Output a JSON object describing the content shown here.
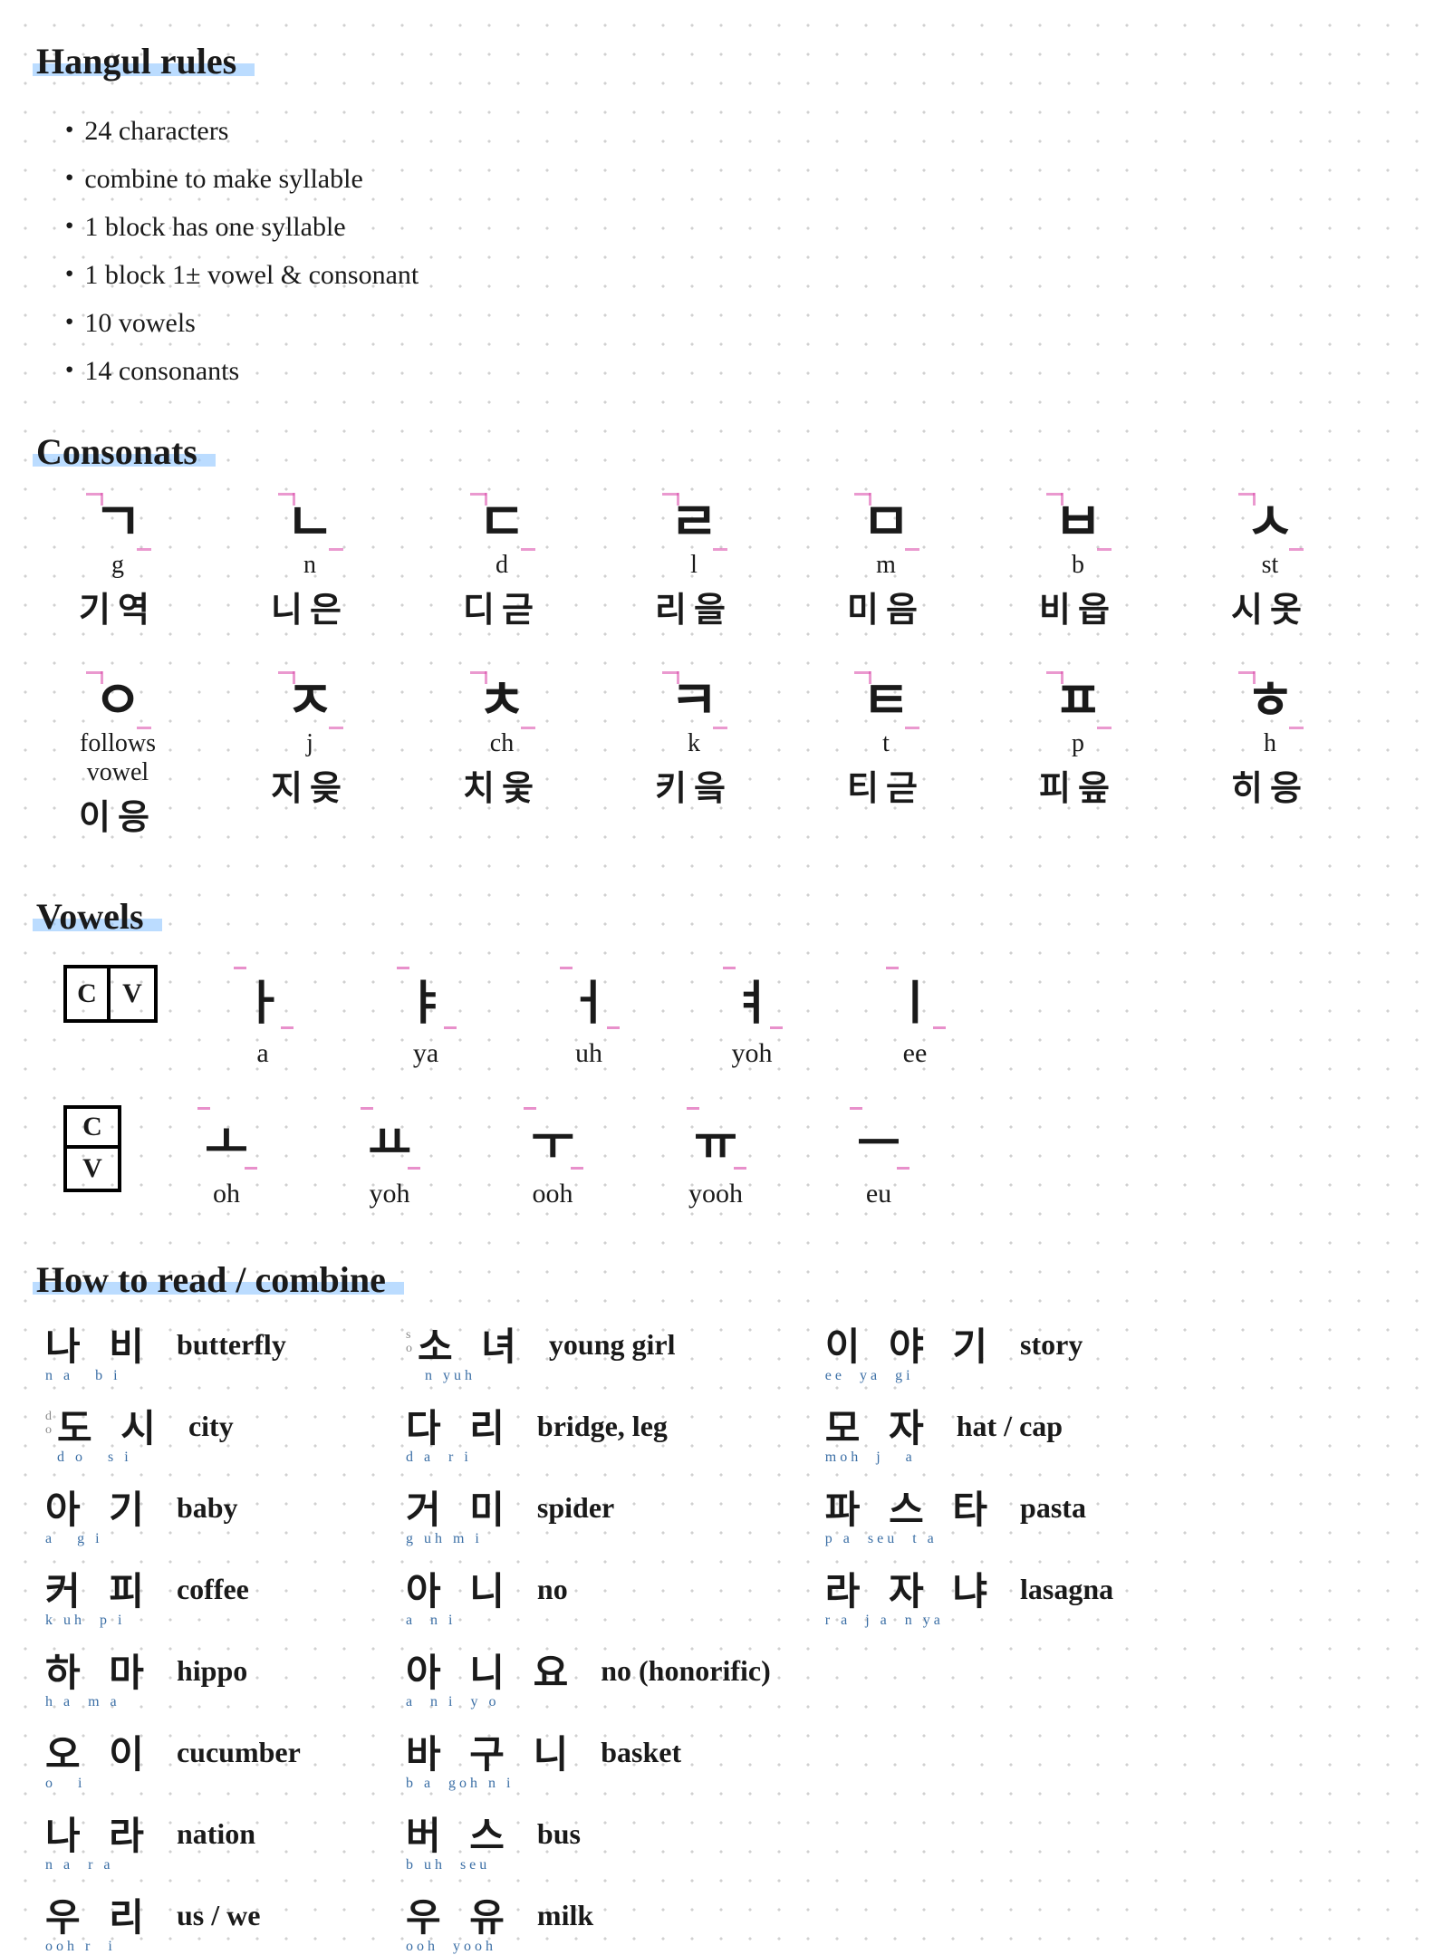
{
  "colors": {
    "highlight": "#8ec5ff",
    "stroke_hint": "#d946a8",
    "phonetic": "#3a6ea5",
    "dot_grid": "#d0d0d0",
    "ink": "#1a1a1a",
    "bg": "#ffffff"
  },
  "headings": {
    "title": "Hangul  rules",
    "consonants": "Consonats",
    "vowels": "Vowels",
    "combine": "How to read / combine"
  },
  "rules": [
    "24  characters",
    "combine to make syllable",
    "1 block has one syllable",
    "1 block 1± vowel & consonant",
    "10 vowels",
    "14 consonants"
  ],
  "consonants_row1": [
    {
      "glyph": "ㄱ",
      "rom": "g",
      "name": "기역"
    },
    {
      "glyph": "ㄴ",
      "rom": "n",
      "name": "니은"
    },
    {
      "glyph": "ㄷ",
      "rom": "d",
      "name": "디귿"
    },
    {
      "glyph": "ㄹ",
      "rom": "l",
      "name": "리을"
    },
    {
      "glyph": "ㅁ",
      "rom": "m",
      "name": "미음"
    },
    {
      "glyph": "ㅂ",
      "rom": "b",
      "name": "비읍"
    },
    {
      "glyph": "ㅅ",
      "rom": "st",
      "name": "시옷"
    }
  ],
  "consonants_row2": [
    {
      "glyph": "ㅇ",
      "rom": "follows vowel",
      "name": "이응"
    },
    {
      "glyph": "ㅈ",
      "rom": "j",
      "name": "지읒"
    },
    {
      "glyph": "ㅊ",
      "rom": "ch",
      "name": "치읓"
    },
    {
      "glyph": "ㅋ",
      "rom": "k",
      "name": "키읔"
    },
    {
      "glyph": "ㅌ",
      "rom": "t",
      "name": "티귿"
    },
    {
      "glyph": "ㅍ",
      "rom": "p",
      "name": "피읖"
    },
    {
      "glyph": "ㅎ",
      "rom": "h",
      "name": "히응"
    }
  ],
  "vowels_horizontal_label": {
    "c": "C",
    "v": "V"
  },
  "vowels_h": [
    {
      "glyph": "ㅏ",
      "rom": "a"
    },
    {
      "glyph": "ㅑ",
      "rom": "ya"
    },
    {
      "glyph": "ㅓ",
      "rom": "uh"
    },
    {
      "glyph": "ㅕ",
      "rom": "yoh"
    },
    {
      "glyph": "ㅣ",
      "rom": "ee"
    }
  ],
  "vowels_v": [
    {
      "glyph": "ㅗ",
      "rom": "oh"
    },
    {
      "glyph": "ㅛ",
      "rom": "yoh"
    },
    {
      "glyph": "ㅜ",
      "rom": "ooh"
    },
    {
      "glyph": "ㅠ",
      "rom": "yooh"
    },
    {
      "glyph": "ㅡ",
      "rom": "eu"
    }
  ],
  "words_col1": [
    {
      "k": "나 비",
      "phon": "n a   b i",
      "en": "butterfly"
    },
    {
      "k": "도 시",
      "phon": "d o   s i",
      "en": "city",
      "note": "d\no"
    },
    {
      "k": "아 기",
      "phon": "a   g i",
      "en": "baby"
    },
    {
      "k": "커 피",
      "phon": "k uh  p i",
      "en": "coffee"
    },
    {
      "k": "하 마",
      "phon": "h a  m a",
      "en": "hippo"
    },
    {
      "k": "오 이",
      "phon": "o   i",
      "en": "cucumber"
    },
    {
      "k": "나 라",
      "phon": "n a  r a",
      "en": "nation"
    },
    {
      "k": "우 리",
      "phon": "ooh r  i",
      "en": "us / we"
    }
  ],
  "words_col2": [
    {
      "k": "소 녀",
      "phon": " n yuh",
      "en": "young girl",
      "note": "s\no"
    },
    {
      "k": "다 리",
      "phon": "d a  r i",
      "en": "bridge, leg"
    },
    {
      "k": "거 미",
      "phon": "g uh m i",
      "en": "spider"
    },
    {
      "k": "아 니",
      "phon": "a  n i",
      "en": "no"
    },
    {
      "k": "아 니 요",
      "phon": "a  n i  y o",
      "en": "no (honorific)"
    },
    {
      "k": "바 구 니",
      "phon": "b a  goh n i",
      "en": "basket"
    },
    {
      "k": "버 스",
      "phon": "b uh  seu",
      "en": "bus"
    },
    {
      "k": "우 유",
      "phon": "ooh  yooh",
      "en": "milk"
    }
  ],
  "words_col3": [
    {
      "k": "이 야 기",
      "phon": "ee  ya  gi",
      "en": "story"
    },
    {
      "k": "모 자",
      "phon": "moh  j   a",
      "en": "hat / cap"
    },
    {
      "k": "파 스 타",
      "phon": "p a  seu  t a",
      "en": "pasta"
    },
    {
      "k": "라 자 냐",
      "phon": "r a  j a  n ya",
      "en": "lasagna"
    }
  ]
}
